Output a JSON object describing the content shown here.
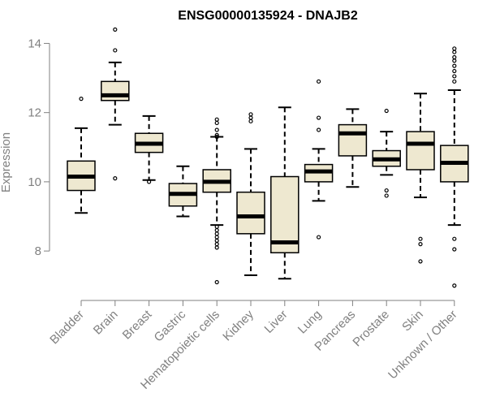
{
  "chart_data": {
    "type": "box",
    "title": "ENSG00000135924 - DNAJB2",
    "xlabel": "",
    "ylabel": "Expression",
    "ylim": [
      6.9,
      14.55
    ],
    "yticks": [
      8,
      10,
      12,
      14
    ],
    "box_fill": "#EEE8D0",
    "axis_color": "#808080",
    "categories": [
      "Bladder",
      "Brain",
      "Breast",
      "Gastric",
      "Hematopoietic cells",
      "Kidney",
      "Liver",
      "Lung",
      "Pancreas",
      "Prostate",
      "Skin",
      "Unknown / Other"
    ],
    "series": [
      {
        "name": "Bladder",
        "whisker_low": 9.1,
        "q1": 9.75,
        "median": 10.15,
        "q3": 10.6,
        "whisker_high": 11.55,
        "outliers": [
          12.4
        ]
      },
      {
        "name": "Brain",
        "whisker_low": 11.65,
        "q1": 12.35,
        "median": 12.5,
        "q3": 12.9,
        "whisker_high": 13.45,
        "outliers": [
          14.4,
          13.8,
          10.1
        ]
      },
      {
        "name": "Breast",
        "whisker_low": 10.05,
        "q1": 10.85,
        "median": 11.1,
        "q3": 11.4,
        "whisker_high": 11.9,
        "outliers": [
          10.0
        ]
      },
      {
        "name": "Gastric",
        "whisker_low": 9.0,
        "q1": 9.3,
        "median": 9.65,
        "q3": 9.95,
        "whisker_high": 10.45,
        "outliers": []
      },
      {
        "name": "Hematopoietic cells",
        "whisker_low": 8.75,
        "q1": 9.7,
        "median": 10.0,
        "q3": 10.35,
        "whisker_high": 11.3,
        "outliers": [
          11.8,
          11.7,
          11.5,
          11.35,
          11.3,
          8.7,
          8.6,
          8.5,
          8.4,
          8.3,
          8.2,
          8.1,
          7.1
        ]
      },
      {
        "name": "Kidney",
        "whisker_low": 7.3,
        "q1": 8.5,
        "median": 9.0,
        "q3": 9.7,
        "whisker_high": 10.95,
        "outliers": [
          11.95,
          11.85,
          11.75
        ]
      },
      {
        "name": "Liver",
        "whisker_low": 7.2,
        "q1": 7.95,
        "median": 8.25,
        "q3": 10.15,
        "whisker_high": 12.15,
        "outliers": []
      },
      {
        "name": "Lung",
        "whisker_low": 9.45,
        "q1": 10.0,
        "median": 10.3,
        "q3": 10.5,
        "whisker_high": 10.95,
        "outliers": [
          12.9,
          11.85,
          11.5,
          8.4
        ]
      },
      {
        "name": "Pancreas",
        "whisker_low": 9.85,
        "q1": 10.75,
        "median": 11.4,
        "q3": 11.65,
        "whisker_high": 12.1,
        "outliers": []
      },
      {
        "name": "Prostate",
        "whisker_low": 10.2,
        "q1": 10.45,
        "median": 10.65,
        "q3": 10.9,
        "whisker_high": 11.45,
        "outliers": [
          12.05,
          9.75,
          9.6
        ]
      },
      {
        "name": "Skin",
        "whisker_low": 9.55,
        "q1": 10.35,
        "median": 11.1,
        "q3": 11.45,
        "whisker_high": 12.55,
        "outliers": [
          8.35,
          8.2,
          7.7
        ]
      },
      {
        "name": "Unknown / Other",
        "whisker_low": 8.75,
        "q1": 10.0,
        "median": 10.55,
        "q3": 11.05,
        "whisker_high": 12.65,
        "outliers": [
          13.85,
          13.75,
          13.6,
          13.5,
          13.35,
          13.2,
          13.05,
          12.9,
          8.35,
          8.05,
          7.0
        ]
      }
    ]
  }
}
